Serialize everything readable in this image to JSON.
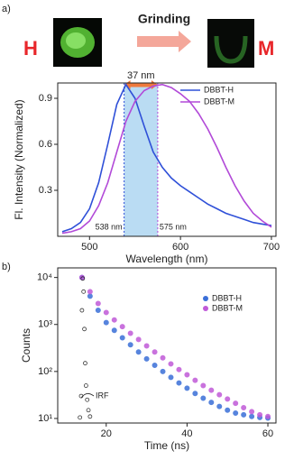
{
  "header": {
    "left": "H",
    "arrow": "Grinding",
    "right": "M"
  },
  "panel_labels": [
    "a)",
    "b)"
  ],
  "chart_data": [
    {
      "type": "line",
      "xlabel": "Wavelength (nm)",
      "ylabel": "Fl. Intensity (Normalized)",
      "x": [
        470,
        480,
        490,
        500,
        510,
        520,
        530,
        540,
        550,
        560,
        570,
        580,
        590,
        600,
        610,
        620,
        630,
        640,
        650,
        660,
        670,
        680,
        690,
        700
      ],
      "series": [
        {
          "name": "DBBT-H",
          "color": "#2f50d8",
          "values": [
            0.03,
            0.05,
            0.09,
            0.18,
            0.35,
            0.6,
            0.86,
            0.99,
            0.9,
            0.72,
            0.55,
            0.45,
            0.38,
            0.33,
            0.29,
            0.25,
            0.21,
            0.18,
            0.15,
            0.13,
            0.11,
            0.09,
            0.08,
            0.07
          ]
        },
        {
          "name": "DBBT-M",
          "color": "#b24ad8",
          "values": [
            0.02,
            0.03,
            0.05,
            0.1,
            0.2,
            0.35,
            0.55,
            0.75,
            0.88,
            0.95,
            0.98,
            0.99,
            0.97,
            0.93,
            0.88,
            0.8,
            0.7,
            0.58,
            0.45,
            0.33,
            0.23,
            0.15,
            0.1,
            0.06
          ]
        }
      ],
      "band": {
        "from": 538,
        "to": 575,
        "from_label": "538 nm",
        "to_label": "575 nm",
        "width_label": "37 nm",
        "color": "#a9d3f0",
        "arrow_color": "#f07a3c"
      },
      "xlim": [
        465,
        705
      ],
      "ylim": [
        0,
        1.0
      ],
      "xticks": [
        500,
        600,
        700
      ],
      "yticks": [
        0.3,
        0.6,
        0.9
      ]
    },
    {
      "type": "scatter",
      "log_y": true,
      "xlabel": "Time (ns)",
      "ylabel": "Counts",
      "series": [
        {
          "name": "DBBT-H",
          "color": "#3a6fd8",
          "in_legend": true,
          "x": [
            14,
            16,
            18,
            20,
            22,
            24,
            26,
            28,
            30,
            32,
            34,
            36,
            38,
            40,
            42,
            44,
            46,
            48,
            50,
            52,
            54,
            56,
            58,
            60
          ],
          "values": [
            10000,
            4000,
            2000,
            1100,
            750,
            520,
            370,
            260,
            185,
            135,
            100,
            75,
            57,
            44,
            34,
            27,
            22,
            18,
            15,
            13,
            12,
            11,
            10.5,
            10.2
          ]
        },
        {
          "name": "DBBT-M",
          "color": "#c05ad8",
          "in_legend": true,
          "x": [
            14,
            16,
            18,
            20,
            22,
            24,
            26,
            28,
            30,
            32,
            34,
            36,
            38,
            40,
            42,
            44,
            46,
            48,
            50,
            52,
            54,
            56,
            58,
            60
          ],
          "values": [
            10000,
            5000,
            2800,
            1800,
            1250,
            900,
            650,
            480,
            350,
            260,
            195,
            145,
            110,
            85,
            65,
            50,
            40,
            32,
            26,
            21,
            17,
            14,
            12,
            11
          ]
        },
        {
          "name": "IRF",
          "color": "#111111",
          "in_legend": false,
          "x": [
            13.5,
            13.8,
            14,
            14.2,
            14.4,
            14.6,
            14.8,
            15,
            15.3,
            15.6,
            16
          ],
          "values": [
            10.5,
            30,
            2000,
            9500,
            5000,
            800,
            150,
            50,
            25,
            15,
            11
          ]
        }
      ],
      "xlim": [
        8,
        62
      ],
      "ylim": [
        8,
        16000
      ],
      "xticks": [
        20,
        40,
        60
      ],
      "yticks": [
        {
          "value": 10,
          "label": "10¹"
        },
        {
          "value": 100,
          "label": "10²"
        },
        {
          "value": 1000,
          "label": "10³"
        },
        {
          "value": 10000,
          "label": "10⁴"
        }
      ]
    }
  ]
}
